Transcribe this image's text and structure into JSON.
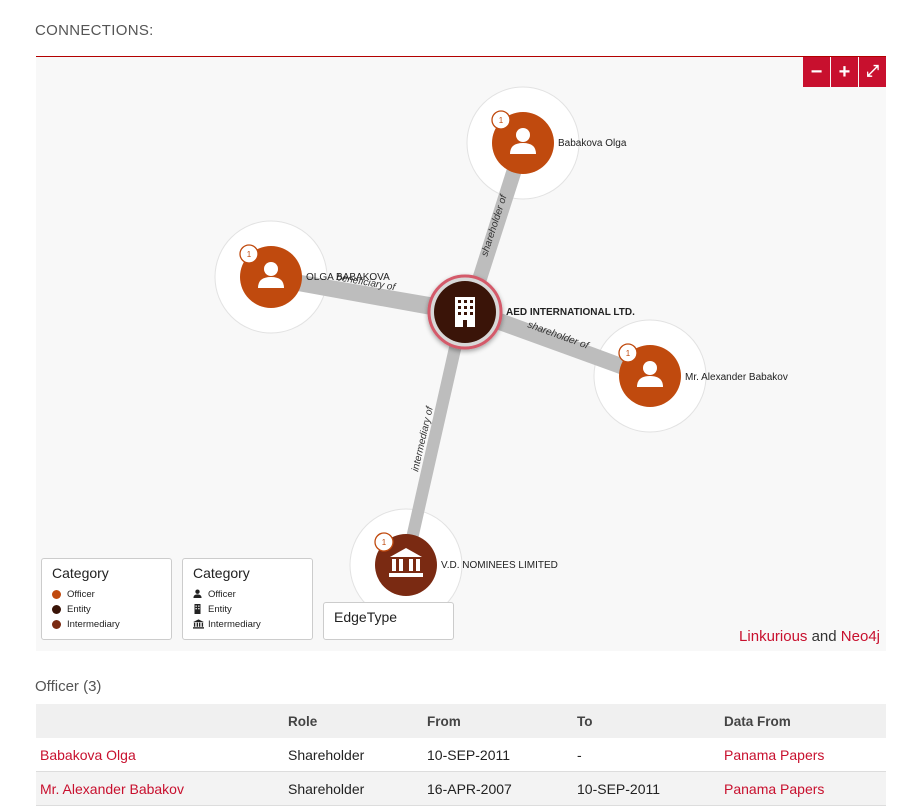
{
  "section_title": "CONNECTIONS:",
  "zoom": {
    "minus": "−",
    "plus": "+",
    "expand": "⤢"
  },
  "graph": {
    "center": {
      "label": "AED INTERNATIONAL LTD.",
      "icon": "building-icon"
    },
    "nodes": [
      {
        "label": "Babakova Olga",
        "badge": "1",
        "icon": "person-icon",
        "edge": "shareholder of"
      },
      {
        "label": "OLGA BABAKOVA",
        "badge": "1",
        "icon": "person-icon",
        "edge": "beneficiary of"
      },
      {
        "label": "Mr. Alexander Babakov",
        "badge": "1",
        "icon": "person-icon",
        "edge": "shareholder of"
      },
      {
        "label": "V.D. NOMINEES LIMITED",
        "badge": "1",
        "icon": "bank-icon",
        "edge": "intermediary of"
      }
    ]
  },
  "legend_color": {
    "title": "Category",
    "items": [
      {
        "label": "Officer",
        "color": "#c04a0e"
      },
      {
        "label": "Entity",
        "color": "#3a1408"
      },
      {
        "label": "Intermediary",
        "color": "#7a2a12"
      }
    ]
  },
  "legend_icon": {
    "title": "Category",
    "items": [
      {
        "label": "Officer",
        "icon": "person-icon"
      },
      {
        "label": "Entity",
        "icon": "building-icon"
      },
      {
        "label": "Intermediary",
        "icon": "bank-icon"
      }
    ]
  },
  "legend_edge": {
    "title": "EdgeType"
  },
  "credits": {
    "a": "Linkurious",
    "and": "and",
    "b": "Neo4j"
  },
  "officer_section": {
    "title": "Officer (3)"
  },
  "table": {
    "headers": [
      "",
      "Role",
      "From",
      "To",
      "Data From"
    ],
    "rows": [
      {
        "name": "Babakova Olga",
        "role": "Shareholder",
        "from": "10-SEP-2011",
        "to": "-",
        "source": "Panama Papers"
      },
      {
        "name": "Mr. Alexander Babakov",
        "role": "Shareholder",
        "from": "16-APR-2007",
        "to": "10-SEP-2011",
        "source": "Panama Papers"
      }
    ]
  },
  "colors": {
    "accent": "#c8102e",
    "officer": "#c04a0e",
    "entity": "#3a1408"
  }
}
